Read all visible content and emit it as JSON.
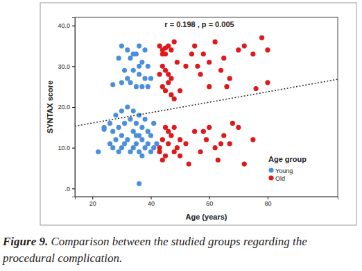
{
  "chart_data": {
    "type": "scatter",
    "annotation": "r = 0.198 , p = 0.005",
    "x_label": "Age (years)",
    "y_label": "SYNTAX score",
    "legend_title": "Age group",
    "legend": "lower right",
    "grid": false,
    "caption_label": "Figure 9.",
    "caption": "Comparison between the studied groups regarding the procedural complication.",
    "xlim": [
      14,
      104
    ],
    "xticks": [
      20,
      40,
      60,
      80
    ],
    "ylim": [
      -2,
      42
    ],
    "yticks": [
      {
        "value": 0,
        "label": ".0"
      },
      {
        "value": 10,
        "label": "10.0"
      },
      {
        "value": 20,
        "label": "20.0"
      },
      {
        "value": 30,
        "label": "30.0"
      },
      {
        "value": 40,
        "label": "40.0"
      }
    ],
    "series": [
      {
        "name": "Young",
        "color": "#4a8fdc",
        "marker": "circle",
        "x": [
          30,
          32,
          34,
          36,
          38,
          29,
          33,
          35,
          37,
          39,
          31,
          34,
          36,
          38,
          40,
          30,
          27,
          33,
          35,
          37,
          39,
          32,
          36,
          28,
          30,
          32,
          34,
          36,
          38,
          26,
          29,
          31,
          33,
          35,
          37,
          39,
          24,
          27,
          30,
          34,
          36,
          40,
          41,
          22,
          26,
          28,
          30,
          31,
          32,
          33,
          34,
          35,
          36,
          37,
          38,
          39,
          40,
          41,
          29,
          27,
          35,
          37,
          42,
          36,
          24
        ],
        "values": [
          35,
          34,
          33,
          35,
          34,
          32,
          32,
          33,
          31,
          30,
          29,
          29,
          28,
          27,
          27,
          26,
          25.5,
          26,
          25,
          25,
          25,
          27,
          30,
          18,
          19,
          20,
          19,
          18,
          17,
          16,
          15,
          16,
          17,
          16,
          15,
          14,
          15,
          14,
          13,
          14,
          13,
          13,
          16,
          9,
          11,
          12,
          10,
          11,
          12,
          9,
          10,
          11,
          9,
          12,
          10,
          11,
          9,
          10,
          9,
          10,
          13,
          8,
          11,
          1.2,
          14.5
        ]
      },
      {
        "name": "Old",
        "color": "#e0181b",
        "marker": "circle",
        "x": [
          43,
          44,
          45,
          46,
          47,
          48,
          45,
          44,
          44,
          45,
          46,
          47,
          44,
          45,
          46,
          47,
          48,
          43,
          49,
          50,
          52,
          55,
          57,
          58,
          60,
          62,
          64,
          65,
          67,
          70,
          72,
          75,
          78,
          80,
          76,
          60,
          56,
          54,
          66,
          80,
          43,
          44,
          45,
          46,
          47,
          48,
          49,
          50,
          44,
          46,
          48,
          52,
          55,
          57,
          59,
          60,
          62,
          63,
          65,
          67,
          68,
          70,
          72,
          75,
          58,
          53,
          64,
          45,
          43,
          50
        ],
        "values": [
          35,
          34,
          33,
          35,
          34,
          36,
          34.5,
          33,
          30,
          29,
          28,
          27,
          25,
          24,
          26,
          23,
          22,
          28,
          31,
          24,
          30,
          35,
          28,
          33,
          31,
          36,
          29,
          32,
          27,
          34,
          35,
          33,
          37,
          34,
          24.5,
          25,
          30,
          33,
          25,
          26,
          10,
          12,
          8,
          11,
          13,
          9,
          10,
          12,
          7,
          14,
          15,
          11,
          14,
          9,
          12,
          15,
          10,
          7,
          13,
          11,
          16,
          15,
          6,
          12,
          14,
          6,
          11,
          15,
          9,
          8
        ]
      },
      {
        "type": "line",
        "line_style": "dotted",
        "color": "#333333",
        "x": [
          14,
          104
        ],
        "values": [
          15.3,
          26.8
        ]
      }
    ]
  }
}
